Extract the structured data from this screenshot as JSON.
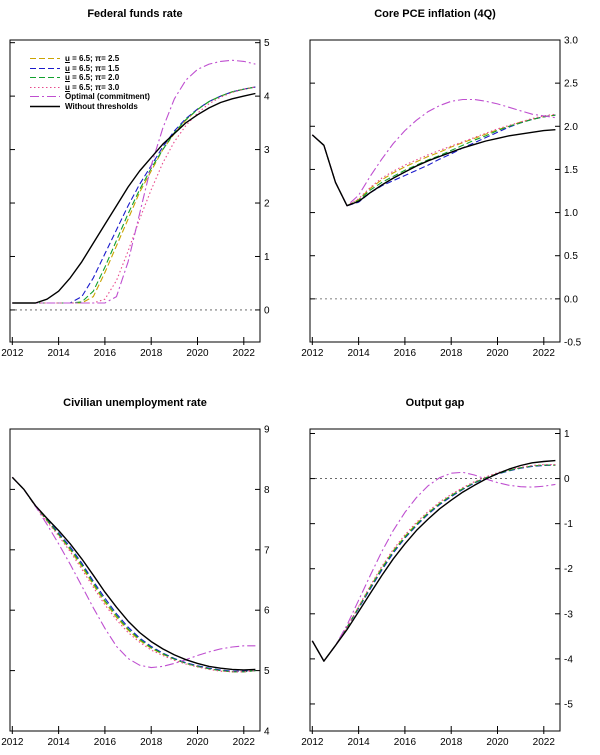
{
  "figure": {
    "background": "#ffffff",
    "zero_line_color": "#555555"
  },
  "series_defs": [
    {
      "key": "u65_pi25",
      "label": "u = 6.5; π= 2.5",
      "color": "#c9a400",
      "dash": "dash"
    },
    {
      "key": "u65_pi15",
      "label": "u = 6.5; π= 1.5",
      "color": "#1a1acc",
      "dash": "dash"
    },
    {
      "key": "u65_pi20",
      "label": "u = 6.5; π= 2.0",
      "color": "#11a02e",
      "dash": "dash"
    },
    {
      "key": "u65_pi30",
      "label": "u = 6.5; π= 3.0",
      "color": "#e8488b",
      "dash": "dot"
    },
    {
      "key": "optimal",
      "label": "Optimal (commitment)",
      "color": "#bf4fd0",
      "dash": "dashdot"
    },
    {
      "key": "without",
      "label": "Without thresholds",
      "color": "#000000",
      "dash": "solid"
    }
  ],
  "x_values": [
    2012,
    2012.5,
    2013,
    2013.5,
    2014,
    2014.5,
    2015,
    2015.5,
    2016,
    2016.5,
    2017,
    2017.5,
    2018,
    2018.5,
    2019,
    2019.5,
    2020,
    2020.5,
    2021,
    2021.5,
    2022,
    2022.5
  ],
  "chart_data": [
    {
      "type": "line",
      "title": "Federal funds rate",
      "xlim": [
        2011.9,
        2022.7
      ],
      "xticks": [
        2012,
        2014,
        2016,
        2018,
        2020,
        2022
      ],
      "xtick_labels": [
        "2012",
        "2014",
        "2016",
        "2018",
        "2020",
        "2022"
      ],
      "ylim": [
        -0.6,
        5.05
      ],
      "yticks": [
        0,
        1,
        2,
        3,
        4,
        5
      ],
      "ytick_labels": [
        "0",
        "1",
        "2",
        "3",
        "4",
        "5"
      ],
      "zero_line": 0,
      "legend": true,
      "series": {
        "u65_pi25": [
          0.13,
          0.13,
          0.13,
          0.13,
          0.13,
          0.13,
          0.13,
          0.25,
          0.7,
          1.2,
          1.7,
          2.2,
          2.6,
          3.0,
          3.3,
          3.55,
          3.75,
          3.9,
          4.0,
          4.08,
          4.13,
          4.17
        ],
        "u65_pi15": [
          0.13,
          0.13,
          0.13,
          0.13,
          0.13,
          0.13,
          0.25,
          0.6,
          1.05,
          1.5,
          1.95,
          2.35,
          2.7,
          3.05,
          3.35,
          3.58,
          3.76,
          3.9,
          4.0,
          4.08,
          4.13,
          4.17
        ],
        "u65_pi20": [
          0.13,
          0.13,
          0.13,
          0.13,
          0.13,
          0.13,
          0.15,
          0.35,
          0.8,
          1.3,
          1.8,
          2.25,
          2.65,
          3.0,
          3.32,
          3.56,
          3.75,
          3.9,
          4.0,
          4.08,
          4.13,
          4.17
        ],
        "u65_pi30": [
          0.13,
          0.13,
          0.13,
          0.13,
          0.13,
          0.13,
          0.13,
          0.13,
          0.2,
          0.55,
          1.1,
          1.7,
          2.25,
          2.75,
          3.15,
          3.45,
          3.68,
          3.86,
          3.98,
          4.07,
          4.13,
          4.17
        ],
        "optimal": [
          0.13,
          0.13,
          0.13,
          0.13,
          0.13,
          0.13,
          0.13,
          0.13,
          0.13,
          0.25,
          0.9,
          1.8,
          2.7,
          3.4,
          3.95,
          4.3,
          4.5,
          4.6,
          4.65,
          4.67,
          4.65,
          4.6
        ],
        "without": [
          0.13,
          0.13,
          0.13,
          0.2,
          0.35,
          0.6,
          0.9,
          1.25,
          1.6,
          1.95,
          2.3,
          2.6,
          2.85,
          3.1,
          3.3,
          3.5,
          3.65,
          3.78,
          3.88,
          3.95,
          4.0,
          4.05
        ]
      }
    },
    {
      "type": "line",
      "title": "Core PCE inflation (4Q)",
      "xlim": [
        2011.9,
        2022.7
      ],
      "xticks": [
        2012,
        2014,
        2016,
        2018,
        2020,
        2022
      ],
      "xtick_labels": [
        "2012",
        "2014",
        "2016",
        "2018",
        "2020",
        "2022"
      ],
      "ylim": [
        -0.5,
        3.0
      ],
      "yticks": [
        -0.5,
        0,
        0.5,
        1,
        1.5,
        2,
        2.5,
        3
      ],
      "ytick_labels": [
        "-0.5",
        "0.0",
        "0.5",
        "1.0",
        "1.5",
        "2.0",
        "2.5",
        "3.0"
      ],
      "zero_line": 0,
      "legend": false,
      "series": {
        "u65_pi25": [
          1.9,
          1.78,
          1.35,
          1.08,
          1.15,
          1.28,
          1.38,
          1.46,
          1.53,
          1.59,
          1.65,
          1.7,
          1.76,
          1.81,
          1.86,
          1.91,
          1.96,
          2.0,
          2.05,
          2.08,
          2.11,
          2.13
        ],
        "u65_pi15": [
          1.9,
          1.78,
          1.35,
          1.08,
          1.12,
          1.23,
          1.31,
          1.37,
          1.43,
          1.49,
          1.55,
          1.62,
          1.68,
          1.75,
          1.81,
          1.87,
          1.93,
          1.99,
          2.04,
          2.08,
          2.11,
          2.13
        ],
        "u65_pi20": [
          1.9,
          1.78,
          1.35,
          1.08,
          1.14,
          1.26,
          1.35,
          1.42,
          1.49,
          1.55,
          1.61,
          1.66,
          1.72,
          1.78,
          1.84,
          1.89,
          1.95,
          2.0,
          2.04,
          2.08,
          2.11,
          2.13
        ],
        "u65_pi30": [
          1.9,
          1.78,
          1.35,
          1.08,
          1.16,
          1.29,
          1.4,
          1.48,
          1.55,
          1.61,
          1.67,
          1.72,
          1.77,
          1.82,
          1.87,
          1.92,
          1.97,
          2.01,
          2.05,
          2.09,
          2.12,
          2.14
        ],
        "optimal": [
          1.9,
          1.78,
          1.35,
          1.08,
          1.2,
          1.42,
          1.62,
          1.8,
          1.95,
          2.07,
          2.17,
          2.24,
          2.29,
          2.31,
          2.31,
          2.29,
          2.26,
          2.22,
          2.18,
          2.14,
          2.12,
          2.1
        ],
        "without": [
          1.9,
          1.78,
          1.35,
          1.08,
          1.13,
          1.23,
          1.32,
          1.4,
          1.47,
          1.54,
          1.6,
          1.65,
          1.7,
          1.75,
          1.79,
          1.83,
          1.86,
          1.89,
          1.91,
          1.93,
          1.95,
          1.96
        ]
      }
    },
    {
      "type": "line",
      "title": "Civilian unemployment rate",
      "xlim": [
        2011.9,
        2022.7
      ],
      "xticks": [
        2012,
        2014,
        2016,
        2018,
        2020,
        2022
      ],
      "xtick_labels": [
        "2012",
        "2014",
        "2016",
        "2018",
        "2020",
        "2022"
      ],
      "ylim": [
        4,
        9
      ],
      "yticks": [
        4,
        5,
        6,
        7,
        8,
        9
      ],
      "ytick_labels": [
        "4",
        "5",
        "6",
        "7",
        "8",
        "9"
      ],
      "zero_line": null,
      "legend": false,
      "series": {
        "u65_pi25": [
          8.2,
          8.0,
          7.72,
          7.48,
          7.25,
          7.0,
          6.72,
          6.42,
          6.13,
          5.88,
          5.67,
          5.5,
          5.37,
          5.27,
          5.19,
          5.12,
          5.07,
          5.03,
          5.0,
          4.98,
          4.98,
          5.0
        ],
        "u65_pi15": [
          8.2,
          8.0,
          7.72,
          7.5,
          7.28,
          7.05,
          6.78,
          6.48,
          6.2,
          5.94,
          5.72,
          5.54,
          5.4,
          5.29,
          5.2,
          5.13,
          5.08,
          5.04,
          5.01,
          4.99,
          4.99,
          5.0
        ],
        "u65_pi20": [
          8.2,
          8.0,
          7.72,
          7.49,
          7.26,
          7.02,
          6.75,
          6.45,
          6.16,
          5.91,
          5.69,
          5.52,
          5.38,
          5.28,
          5.19,
          5.12,
          5.07,
          5.03,
          5.0,
          4.98,
          4.98,
          5.0
        ],
        "u65_pi30": [
          8.2,
          8.0,
          7.72,
          7.47,
          7.23,
          6.97,
          6.68,
          6.38,
          6.09,
          5.84,
          5.63,
          5.47,
          5.34,
          5.25,
          5.17,
          5.11,
          5.06,
          5.02,
          4.99,
          4.98,
          4.98,
          5.0
        ],
        "optimal": [
          8.2,
          8.0,
          7.72,
          7.42,
          7.1,
          6.76,
          6.4,
          6.04,
          5.7,
          5.4,
          5.2,
          5.09,
          5.05,
          5.07,
          5.12,
          5.18,
          5.25,
          5.31,
          5.36,
          5.39,
          5.41,
          5.41
        ],
        "without": [
          8.2,
          8.0,
          7.73,
          7.52,
          7.32,
          7.1,
          6.85,
          6.58,
          6.3,
          6.05,
          5.82,
          5.63,
          5.48,
          5.36,
          5.26,
          5.18,
          5.12,
          5.07,
          5.04,
          5.02,
          5.01,
          5.02
        ]
      }
    },
    {
      "type": "line",
      "title": "Output gap",
      "xlim": [
        2011.9,
        2022.7
      ],
      "xticks": [
        2012,
        2014,
        2016,
        2018,
        2020,
        2022
      ],
      "xtick_labels": [
        "2012",
        "2014",
        "2016",
        "2018",
        "2020",
        "2022"
      ],
      "ylim": [
        -5.6,
        1.1
      ],
      "yticks": [
        -5,
        -4,
        -3,
        -2,
        -1,
        0,
        1
      ],
      "ytick_labels": [
        "-5",
        "-4",
        "-3",
        "-2",
        "-1",
        "0",
        "1"
      ],
      "zero_line": 0,
      "legend": false,
      "series": {
        "u65_pi25": [
          -3.6,
          -4.05,
          -3.7,
          -3.3,
          -2.85,
          -2.4,
          -1.98,
          -1.6,
          -1.28,
          -1.0,
          -0.76,
          -0.55,
          -0.37,
          -0.22,
          -0.09,
          0.02,
          0.11,
          0.18,
          0.24,
          0.28,
          0.3,
          0.3
        ],
        "u65_pi15": [
          -3.6,
          -4.05,
          -3.7,
          -3.3,
          -2.88,
          -2.45,
          -2.03,
          -1.65,
          -1.32,
          -1.04,
          -0.79,
          -0.58,
          -0.4,
          -0.24,
          -0.1,
          0.01,
          0.1,
          0.17,
          0.23,
          0.27,
          0.29,
          0.3
        ],
        "u65_pi20": [
          -3.6,
          -4.05,
          -3.7,
          -3.3,
          -2.86,
          -2.42,
          -2.0,
          -1.62,
          -1.3,
          -1.02,
          -0.77,
          -0.56,
          -0.38,
          -0.23,
          -0.09,
          0.02,
          0.11,
          0.18,
          0.24,
          0.28,
          0.3,
          0.3
        ],
        "u65_pi30": [
          -3.6,
          -4.05,
          -3.7,
          -3.3,
          -2.84,
          -2.38,
          -1.95,
          -1.57,
          -1.25,
          -0.97,
          -0.73,
          -0.52,
          -0.35,
          -0.2,
          -0.07,
          0.04,
          0.13,
          0.2,
          0.25,
          0.29,
          0.31,
          0.31
        ],
        "optimal": [
          -3.6,
          -4.05,
          -3.7,
          -3.25,
          -2.7,
          -2.15,
          -1.62,
          -1.15,
          -0.75,
          -0.42,
          -0.16,
          0.02,
          0.12,
          0.14,
          0.08,
          -0.01,
          -0.09,
          -0.15,
          -0.18,
          -0.19,
          -0.17,
          -0.13
        ],
        "without": [
          -3.6,
          -4.05,
          -3.7,
          -3.35,
          -2.95,
          -2.55,
          -2.15,
          -1.78,
          -1.45,
          -1.15,
          -0.9,
          -0.67,
          -0.48,
          -0.3,
          -0.15,
          -0.01,
          0.11,
          0.21,
          0.29,
          0.35,
          0.38,
          0.4
        ]
      }
    }
  ]
}
